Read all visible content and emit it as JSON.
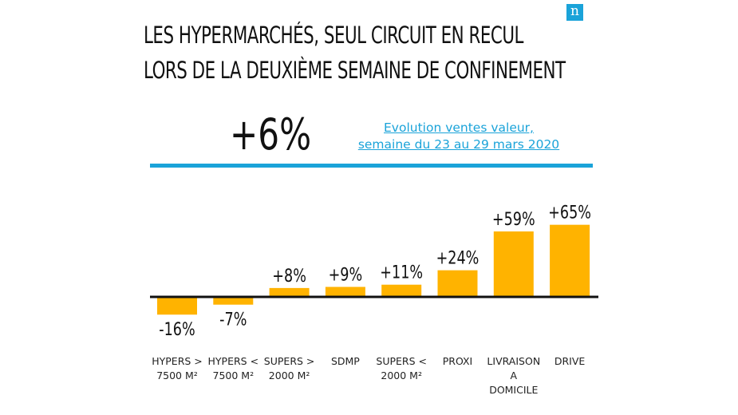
{
  "title": {
    "line1": "LES HYPERMARCHÉS, SEUL CIRCUIT EN RECUL",
    "line2": "LORS DE LA DEUXIÈME SEMAINE DE CONFINEMENT"
  },
  "logo": {
    "letter": "n",
    "icon": "nielsen-logo-icon"
  },
  "total": "+6%",
  "subtitle": {
    "line1": "Evolution ventes valeur,",
    "line2": "semaine du 23 au 29 mars 2020"
  },
  "colors": {
    "bar": "#ffb300",
    "accent": "#1aa3d9",
    "axis": "#111111"
  },
  "chart_data": {
    "type": "bar",
    "categories": [
      [
        "HYPERS >",
        "7500 M²"
      ],
      [
        "HYPERS <",
        "7500 M²"
      ],
      [
        "SUPERS >",
        "2000 M²"
      ],
      [
        "SDMP"
      ],
      [
        "SUPERS <",
        "2000 M²"
      ],
      [
        "PROXI"
      ],
      [
        "LIVRAISON",
        "A",
        "DOMICILE"
      ],
      [
        "DRIVE"
      ]
    ],
    "values": [
      -16,
      -7,
      8,
      9,
      11,
      24,
      59,
      65
    ],
    "data_labels": [
      "-16%",
      "-7%",
      "+8%",
      "+9%",
      "+11%",
      "+24%",
      "+59%",
      "+65%"
    ],
    "title": "LES HYPERMARCHÉS, SEUL CIRCUIT EN RECUL LORS DE LA DEUXIÈME SEMAINE DE CONFINEMENT",
    "xlabel": "",
    "ylabel": "",
    "grid": false
  }
}
